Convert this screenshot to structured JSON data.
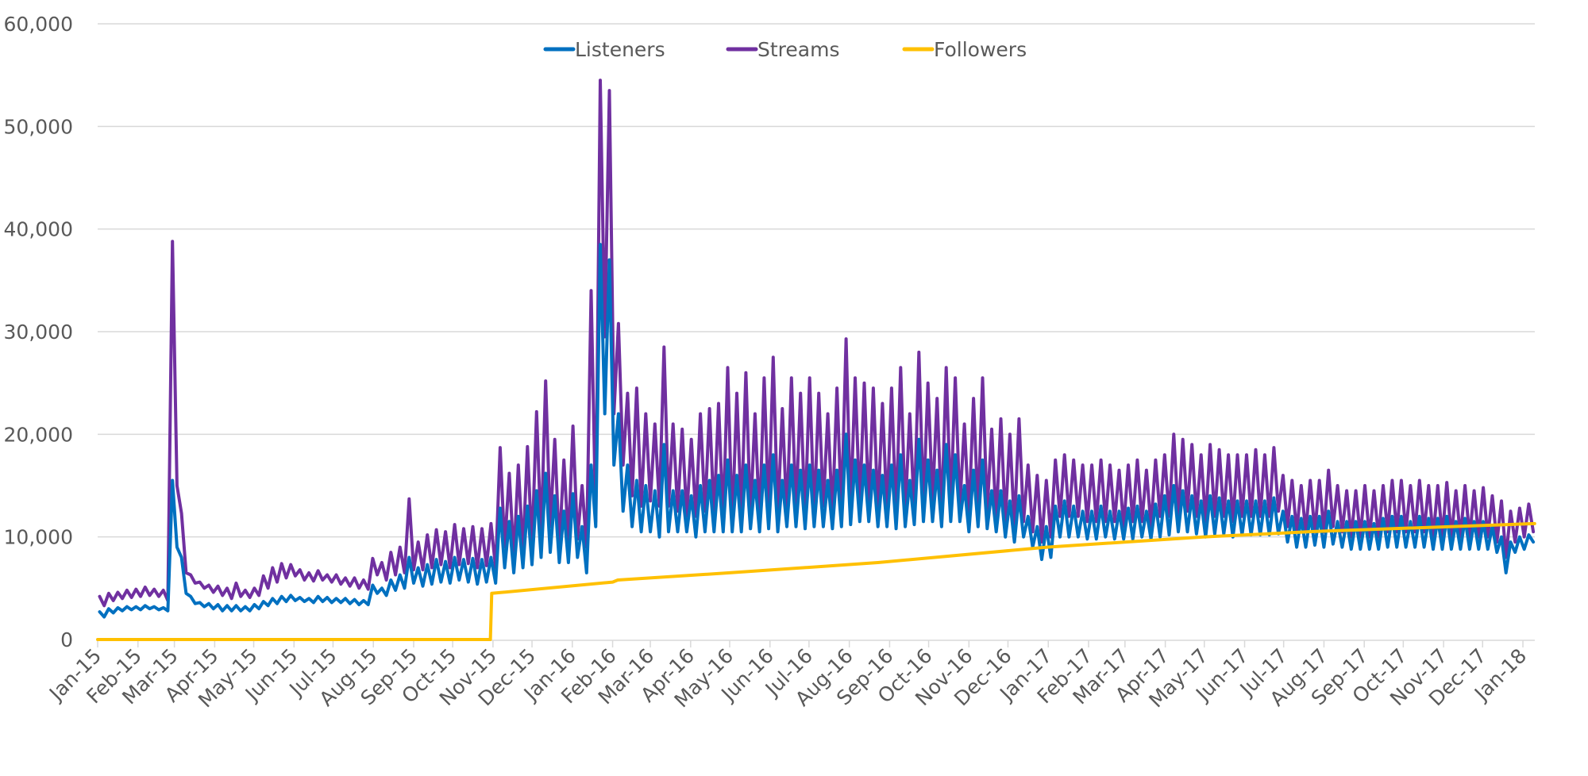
{
  "chart_data": {
    "type": "line",
    "title": "",
    "xlabel": "",
    "ylabel": "",
    "ylim": [
      0,
      60000
    ],
    "yticks": [
      "0",
      "10,000",
      "20,000",
      "30,000",
      "40,000",
      "50,000",
      "60,000"
    ],
    "ytick_values": [
      0,
      10000,
      20000,
      30000,
      40000,
      50000,
      60000
    ],
    "xlim_days": [
      0,
      1105
    ],
    "x_start_date": "2015-01-01",
    "sampling": "weekly high/low pairs starting Thursday 2015-01-01 (high ~day 1, low ~day 5 of each week)",
    "xticks": [
      "Jan-15",
      "Feb-15",
      "Mar-15",
      "Apr-15",
      "May-15",
      "Jun-15",
      "Jul-15",
      "Aug-15",
      "Sep-15",
      "Oct-15",
      "Nov-15",
      "Dec-15",
      "Jan-16",
      "Feb-16",
      "Mar-16",
      "Apr-16",
      "May-16",
      "Jun-16",
      "Jul-16",
      "Aug-16",
      "Sep-16",
      "Oct-16",
      "Nov-16",
      "Dec-16",
      "Jan-17",
      "Feb-17",
      "Mar-17",
      "Apr-17",
      "May-17",
      "Jun-17",
      "Jul-17",
      "Aug-17",
      "Sep-17",
      "Oct-17",
      "Nov-17",
      "Dec-17",
      "Jan-18"
    ],
    "xtick_days": [
      0,
      31,
      59,
      90,
      120,
      151,
      181,
      212,
      243,
      273,
      304,
      334,
      365,
      396,
      425,
      456,
      486,
      517,
      547,
      578,
      609,
      639,
      670,
      700,
      731,
      762,
      790,
      821,
      851,
      882,
      912,
      943,
      974,
      1004,
      1035,
      1065,
      1096
    ],
    "grid": true,
    "legend": "top-center",
    "series": [
      {
        "name": "Listeners",
        "color": "#0070C0",
        "weekly_high": [
          2700,
          3000,
          3100,
          3200,
          3200,
          3300,
          3200,
          3100,
          15500,
          8000,
          4200,
          3600,
          3500,
          3400,
          3300,
          3300,
          3200,
          3400,
          3700,
          4000,
          4200,
          4300,
          4100,
          4000,
          4200,
          4100,
          4000,
          4000,
          3900,
          3800,
          5300,
          5000,
          5800,
          6300,
          8000,
          7000,
          7300,
          7800,
          7600,
          8000,
          7800,
          7900,
          7800,
          8000,
          12800,
          11500,
          12000,
          13000,
          14500,
          16200,
          14000,
          12500,
          14200,
          11000,
          17000,
          38500,
          37000,
          22000,
          17000,
          15500,
          15000,
          14500,
          19000,
          14500,
          14500,
          14000,
          15000,
          15500,
          16000,
          17500,
          16000,
          17000,
          15500,
          17000,
          18000,
          15500,
          17000,
          16500,
          17000,
          16500,
          15500,
          16500,
          20000,
          17500,
          17000,
          16500,
          16000,
          17000,
          18000,
          15500,
          19500,
          17500,
          16500,
          19000,
          18000,
          15000,
          16500,
          17500,
          14500,
          14500,
          13500,
          14000,
          12000,
          11000,
          11000,
          13000,
          13500,
          13000,
          12500,
          12500,
          13000,
          12500,
          12500,
          12800,
          13000,
          12500,
          13200,
          14000,
          15000,
          14500,
          14000,
          13500,
          14000,
          13800,
          13500,
          13500,
          13500,
          13500,
          13500,
          13800,
          12500,
          12000,
          11800,
          12000,
          12000,
          12500,
          11500,
          11500,
          11500,
          11500,
          11300,
          11800,
          12000,
          12000,
          11500,
          12000,
          11800,
          11800,
          12000,
          11500,
          11800,
          11500,
          11500,
          11000,
          10000,
          9500,
          10000,
          10200
        ],
        "weekly_low": [
          2200,
          2600,
          2800,
          2900,
          2900,
          3000,
          2900,
          2800,
          9000,
          4500,
          3500,
          3200,
          3000,
          2800,
          2800,
          2800,
          2800,
          3000,
          3300,
          3500,
          3700,
          3800,
          3700,
          3600,
          3700,
          3600,
          3600,
          3500,
          3400,
          3400,
          4500,
          4300,
          4800,
          5000,
          5500,
          5200,
          5400,
          5600,
          5500,
          5800,
          5600,
          5400,
          5600,
          5500,
          7000,
          6500,
          7000,
          7300,
          8000,
          8500,
          7500,
          7500,
          8000,
          6500,
          11000,
          22000,
          17000,
          12500,
          11000,
          10500,
          10500,
          10000,
          10500,
          10500,
          10500,
          10000,
          10500,
          10500,
          10500,
          10500,
          10500,
          10800,
          10500,
          10800,
          10500,
          11000,
          11000,
          10800,
          11000,
          11000,
          10800,
          11000,
          11200,
          11500,
          11500,
          11000,
          11000,
          10800,
          11000,
          11200,
          11500,
          11500,
          11000,
          11500,
          11500,
          10500,
          11000,
          10800,
          10500,
          10000,
          9500,
          10000,
          9000,
          7800,
          8000,
          10000,
          10000,
          10000,
          9800,
          9800,
          10000,
          9800,
          9800,
          9800,
          10000,
          9800,
          10000,
          10200,
          10500,
          10500,
          10300,
          10000,
          10300,
          10300,
          10000,
          10200,
          10200,
          10200,
          10200,
          10300,
          9500,
          9000,
          9000,
          9200,
          9000,
          9300,
          9000,
          8800,
          8800,
          8800,
          8800,
          9000,
          9000,
          9000,
          9000,
          9000,
          8800,
          8800,
          8800,
          8800,
          8800,
          8800,
          8800,
          8500,
          6500,
          8500,
          8800,
          9500
        ]
      },
      {
        "name": "Streams",
        "color": "#7030A0",
        "weekly_high": [
          4200,
          4500,
          4600,
          4800,
          4900,
          5100,
          4900,
          4800,
          38800,
          12300,
          6300,
          5600,
          5300,
          5200,
          5000,
          5500,
          4800,
          5000,
          6200,
          7000,
          7400,
          7300,
          6800,
          6500,
          6700,
          6300,
          6300,
          6000,
          6000,
          5800,
          7900,
          7500,
          8500,
          9000,
          13700,
          9500,
          10200,
          10700,
          10500,
          11200,
          10800,
          11000,
          10800,
          11300,
          18700,
          16200,
          17000,
          18800,
          22200,
          25200,
          19500,
          17500,
          20800,
          15000,
          34000,
          54500,
          53500,
          30800,
          24000,
          24500,
          22000,
          21000,
          28500,
          21000,
          20500,
          19500,
          22000,
          22500,
          23000,
          26500,
          24000,
          26000,
          22000,
          25500,
          27500,
          22500,
          25500,
          24000,
          25500,
          24000,
          22000,
          24500,
          29300,
          25500,
          25000,
          24500,
          23000,
          24500,
          26500,
          22000,
          28000,
          25000,
          23500,
          26500,
          25500,
          21000,
          23500,
          25500,
          20500,
          21500,
          20000,
          21500,
          17000,
          16000,
          15500,
          17500,
          18000,
          17500,
          17000,
          17000,
          17500,
          17000,
          16500,
          17000,
          17500,
          16500,
          17500,
          18000,
          20000,
          19500,
          19000,
          18000,
          19000,
          18500,
          18000,
          18000,
          18000,
          18500,
          18000,
          18700,
          16000,
          15500,
          15000,
          15500,
          15500,
          16500,
          15000,
          14500,
          14500,
          15000,
          14500,
          15000,
          15500,
          15500,
          15000,
          15500,
          15000,
          15000,
          15300,
          14500,
          15000,
          14500,
          14800,
          14000,
          13500,
          12500,
          12800,
          13200
        ],
        "weekly_low": [
          3300,
          3800,
          4000,
          4100,
          4200,
          4300,
          4200,
          3800,
          15000,
          6500,
          5500,
          5000,
          4600,
          4300,
          4000,
          4200,
          4100,
          4300,
          5000,
          5600,
          6000,
          6200,
          5800,
          5700,
          5800,
          5600,
          5400,
          5200,
          5000,
          4900,
          6300,
          5800,
          6300,
          6500,
          6800,
          6800,
          7000,
          7300,
          7000,
          7300,
          7400,
          7000,
          7200,
          7000,
          9000,
          8000,
          8500,
          9000,
          10000,
          11000,
          9000,
          9500,
          9800,
          9000,
          11500,
          29500,
          22000,
          17000,
          14000,
          13000,
          13500,
          13000,
          13000,
          12500,
          12000,
          12000,
          12500,
          12000,
          11500,
          11000,
          12000,
          12000,
          11500,
          12500,
          12000,
          12000,
          12500,
          12000,
          12000,
          13000,
          12000,
          12500,
          12500,
          13000,
          13000,
          12500,
          12500,
          12000,
          12500,
          12500,
          13000,
          13500,
          12000,
          13000,
          13000,
          12000,
          12500,
          12500,
          11500,
          11500,
          11000,
          11500,
          10500,
          9500,
          10000,
          12000,
          12000,
          12000,
          11500,
          11500,
          11500,
          11500,
          11000,
          11500,
          11500,
          11000,
          12000,
          12000,
          12000,
          12500,
          12000,
          11500,
          12000,
          12000,
          11500,
          12000,
          12000,
          12000,
          12000,
          12500,
          11000,
          10500,
          10500,
          10500,
          10500,
          11000,
          10500,
          10000,
          10000,
          10000,
          10000,
          10500,
          10500,
          10500,
          10500,
          10500,
          10000,
          10000,
          10000,
          10000,
          10000,
          10000,
          10000,
          9500,
          8000,
          9500,
          10000,
          10500
        ]
      },
      {
        "name": "Followers",
        "color": "#FFC000",
        "points_day_value": [
          [
            0,
            0
          ],
          [
            302,
            0
          ],
          [
            303,
            4500
          ],
          [
            396,
            5600
          ],
          [
            400,
            5800
          ],
          [
            486,
            6500
          ],
          [
            600,
            7500
          ],
          [
            730,
            9000
          ],
          [
            850,
            10000
          ],
          [
            900,
            10300
          ],
          [
            930,
            10500
          ],
          [
            1105,
            11300
          ]
        ]
      }
    ]
  }
}
